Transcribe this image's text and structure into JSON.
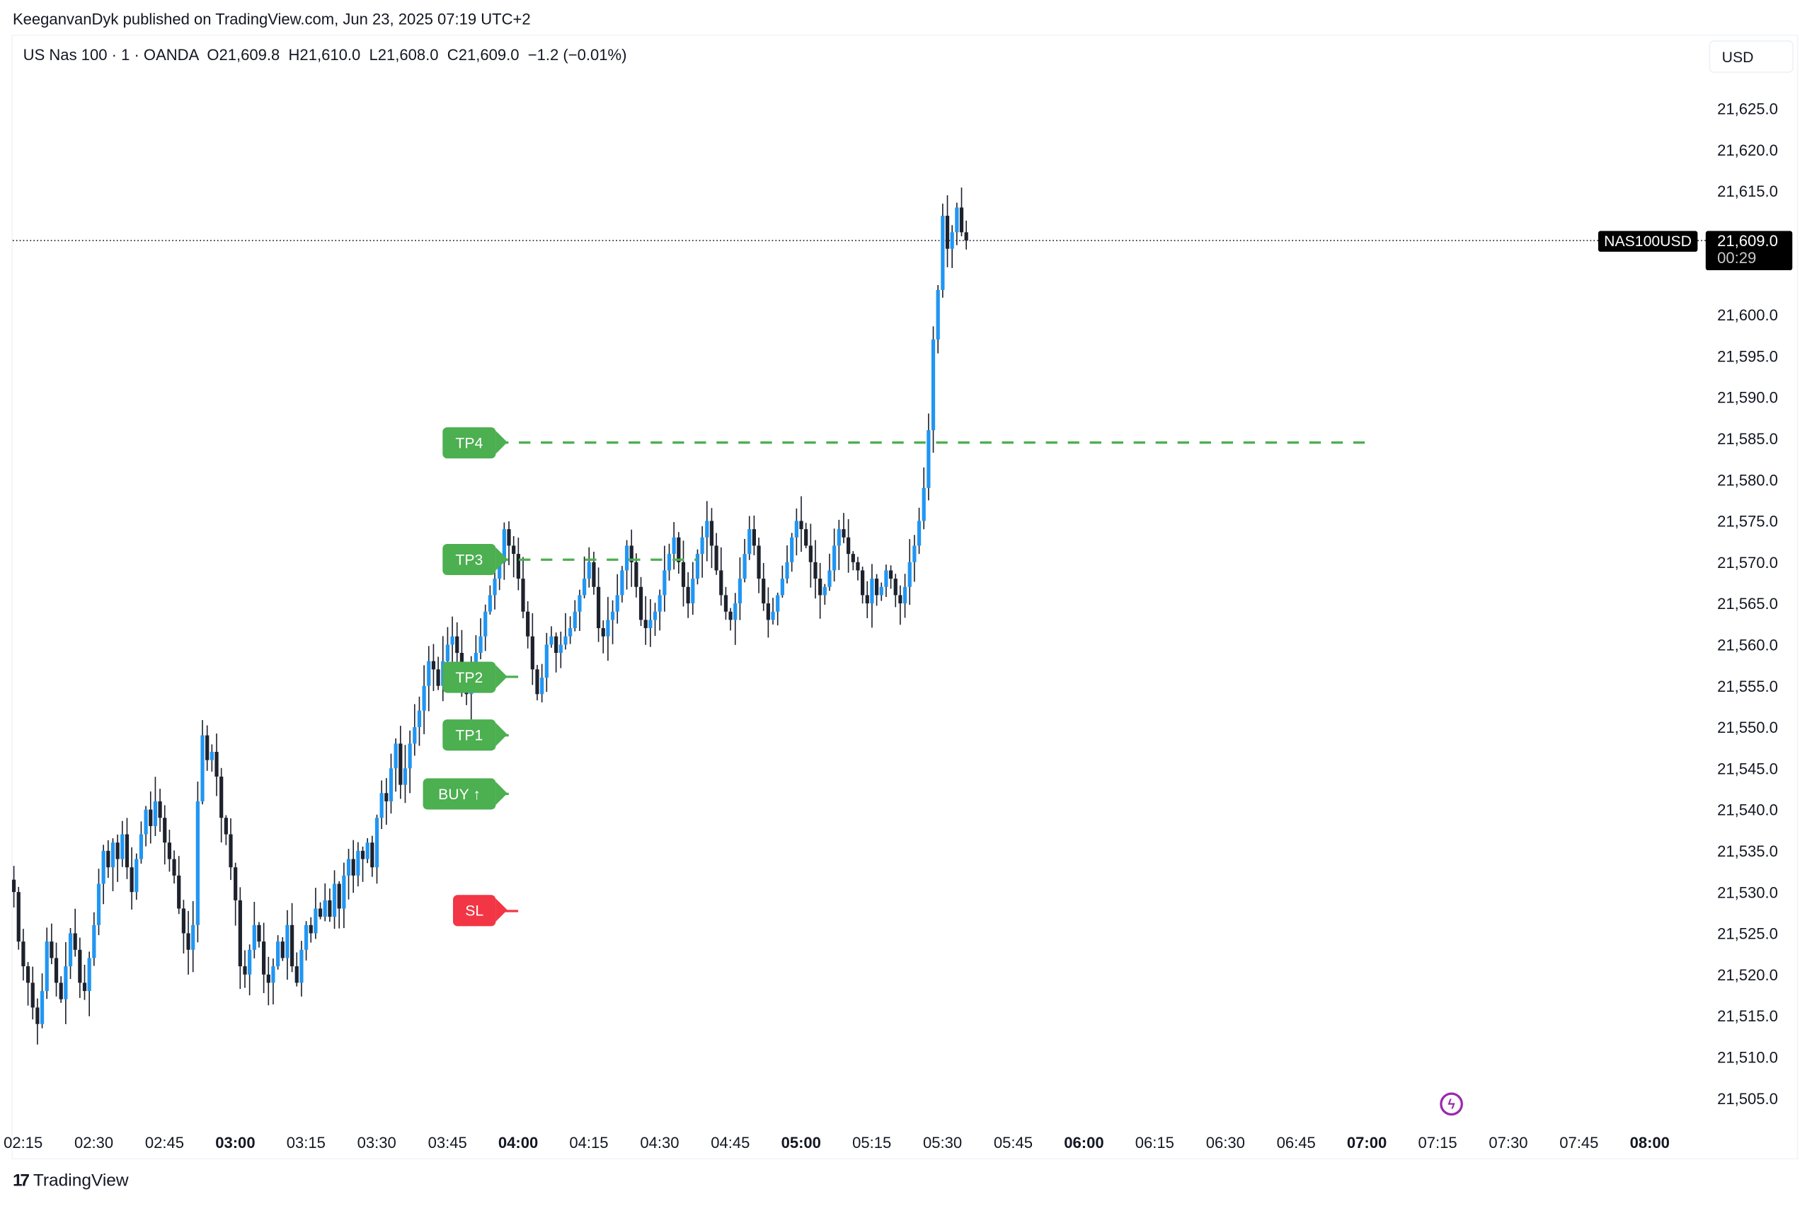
{
  "header": {
    "publisher_line": "KeeganvanDyk published on TradingView.com, Jun 23, 2025 07:19 UTC+2"
  },
  "legend": {
    "symbol": "US Nas 100",
    "interval": "1",
    "exchange": "OANDA",
    "open": "O21,609.8",
    "high": "H21,610.0",
    "low": "L21,608.0",
    "close": "C21,609.0",
    "change": "−1.2 (−0.01%)",
    "text": "US Nas 100 · 1 · OANDA  O21,609.8  H21,610.0  L21,608.0  C21,609.0  −1.2 (−0.01%)"
  },
  "price_axis": {
    "currency": "USD",
    "symbol_tag": "NAS100USD",
    "last_price": "21,609.0",
    "countdown": "00:29"
  },
  "footer": {
    "brand": "TradingView",
    "logo_mark": "17"
  },
  "icons": {
    "alert": "lightning-bolt-icon",
    "logo": "tradingview-logo-icon"
  },
  "colors": {
    "up_candle": "#2196F3",
    "down_candle": "#1E222D",
    "target_green": "#4CAF50",
    "stop_red": "#F23645",
    "alert_purple": "#9C27B0",
    "background": "#FFFFFF"
  },
  "annotations": [
    {
      "label": "TP4",
      "price": 21584.5,
      "kind": "take-profit",
      "color": "#4CAF50",
      "line_to_time": "07:01"
    },
    {
      "label": "TP3",
      "price": 21570.3,
      "kind": "take-profit",
      "color": "#4CAF50",
      "line_to_time": "04:38"
    },
    {
      "label": "TP2",
      "price": 21556.1,
      "kind": "take-profit",
      "color": "#4CAF50",
      "line_to_time": "04:00"
    },
    {
      "label": "TP1",
      "price": 21549.0,
      "kind": "take-profit",
      "color": "#4CAF50",
      "line_to_time": "03:58"
    },
    {
      "label": "BUY ↑",
      "price": 21541.9,
      "kind": "entry",
      "color": "#4CAF50",
      "line_to_time": "03:58"
    },
    {
      "label": "SL",
      "price": 21527.7,
      "kind": "stop-loss",
      "color": "#F23645",
      "line_to_time": "04:00"
    }
  ],
  "chart_data": {
    "type": "candlestick",
    "title": "US Nas 100 · 1 · OANDA",
    "xlabel": "",
    "ylabel": "USD",
    "ylim": [
      21502,
      21632
    ],
    "x_ticks": [
      {
        "label": "02:15",
        "bold": false
      },
      {
        "label": "02:30",
        "bold": false
      },
      {
        "label": "02:45",
        "bold": false
      },
      {
        "label": "03:00",
        "bold": true
      },
      {
        "label": "03:15",
        "bold": false
      },
      {
        "label": "03:30",
        "bold": false
      },
      {
        "label": "03:45",
        "bold": false
      },
      {
        "label": "04:00",
        "bold": true
      },
      {
        "label": "04:15",
        "bold": false
      },
      {
        "label": "04:30",
        "bold": false
      },
      {
        "label": "04:45",
        "bold": false
      },
      {
        "label": "05:00",
        "bold": true
      },
      {
        "label": "05:15",
        "bold": false
      },
      {
        "label": "05:30",
        "bold": false
      },
      {
        "label": "05:45",
        "bold": false
      },
      {
        "label": "06:00",
        "bold": true
      },
      {
        "label": "06:15",
        "bold": false
      },
      {
        "label": "06:30",
        "bold": false
      },
      {
        "label": "06:45",
        "bold": false
      },
      {
        "label": "07:00",
        "bold": true
      },
      {
        "label": "07:15",
        "bold": false
      },
      {
        "label": "07:30",
        "bold": false
      },
      {
        "label": "07:45",
        "bold": false
      },
      {
        "label": "08:00",
        "bold": true
      }
    ],
    "y_ticks": [
      "21,625.0",
      "21,620.0",
      "21,615.0",
      "21,610.0",
      "21,605.0",
      "21,600.0",
      "21,595.0",
      "21,590.0",
      "21,585.0",
      "21,580.0",
      "21,575.0",
      "21,570.0",
      "21,565.0",
      "21,560.0",
      "21,555.0",
      "21,550.0",
      "21,545.0",
      "21,540.0",
      "21,535.0",
      "21,530.0",
      "21,525.0",
      "21,520.0",
      "21,515.0",
      "21,510.0",
      "21,505.0"
    ],
    "last_price": 21609.0,
    "grid": false,
    "start_time": "02:14",
    "interval_minutes": 1,
    "close_path": [
      21530,
      21524,
      21521,
      21519,
      21516,
      21514,
      21518,
      21524,
      21522,
      21519,
      21517,
      21521,
      21525,
      21523,
      21519,
      21518,
      21522,
      21526,
      21531,
      21535,
      21533,
      21536,
      21534,
      21537,
      21533,
      21530,
      21534,
      21537,
      21540,
      21538,
      21541,
      21539,
      21536,
      21534,
      21532,
      21528,
      21525,
      21523,
      21526,
      21541,
      21549,
      21546,
      21547,
      21544,
      21539,
      21537,
      21533,
      21529,
      21521,
      21520,
      21523,
      21526,
      21524,
      21520,
      21519,
      21521,
      21524,
      21522,
      21526,
      21521,
      21519,
      21523,
      21526,
      21525,
      21528,
      21527,
      21529,
      21527,
      21531,
      21528,
      21532,
      21534,
      21532,
      21535,
      21534,
      21536,
      21533,
      21539,
      21542,
      21541,
      21545,
      21548,
      21543,
      21545,
      21548,
      21550,
      21552,
      21555,
      21558,
      21557,
      21555,
      21558,
      21560,
      21561,
      21559,
      21556,
      21554,
      21557,
      21559,
      21561,
      21564,
      21566,
      21568,
      21570,
      21574,
      21572,
      21571,
      21568,
      21564,
      21561,
      21557,
      21554,
      21556,
      21560,
      21561,
      21559,
      21560,
      21561,
      21562,
      21564,
      21566,
      21568,
      21570,
      21567,
      21562,
      21561,
      21563,
      21564,
      21566,
      21569,
      21572,
      21570,
      21567,
      21563,
      21562,
      21563,
      21564,
      21566,
      21569,
      21571,
      21573,
      21570,
      21567,
      21565,
      21568,
      21571,
      21573,
      21575,
      21572,
      21569,
      21566,
      21564,
      21563,
      21565,
      21568,
      21571,
      21574,
      21572,
      21568,
      21565,
      21563,
      21564,
      21566,
      21568,
      21570,
      21573,
      21575,
      21574,
      21572,
      21570,
      21568,
      21566,
      21567,
      21569,
      21572,
      21574,
      21573,
      21571,
      21570,
      21569,
      21566,
      21565,
      21568,
      21566,
      21567,
      21569,
      21568,
      21566,
      21565,
      21567,
      21570,
      21572,
      21575,
      21579,
      21586,
      21597,
      21603,
      21612,
      21608,
      21610,
      21613,
      21610,
      21609
    ]
  }
}
